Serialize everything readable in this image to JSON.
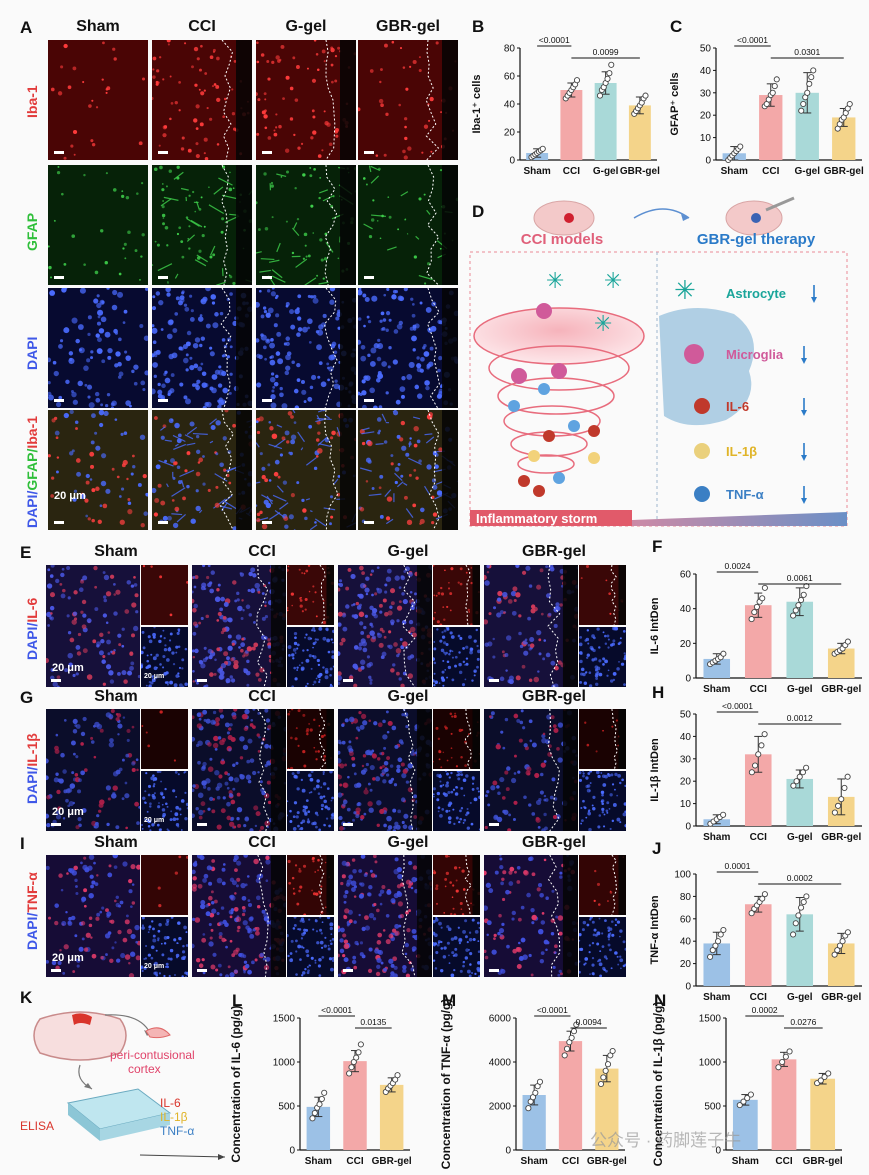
{
  "panelA": {
    "letter": "A",
    "columns": [
      "Sham",
      "CCI",
      "G-gel",
      "GBR-gel"
    ],
    "rows": [
      {
        "label": "Iba-1",
        "color": "#e23b3b"
      },
      {
        "label": "GFAP",
        "color": "#2fbf3a"
      },
      {
        "label": "DAPI",
        "color": "#3f58e8"
      }
    ],
    "merge_label": {
      "p1": "DAPI/",
      "p2": "GFAP/",
      "p3": "Iba-1"
    },
    "scale": "20 μm"
  },
  "panelD": {
    "letter": "D",
    "left_title": "CCI models",
    "right_title": "GBR-gel therapy",
    "items": [
      {
        "label": "Astrocyte",
        "color": "#1aa59a"
      },
      {
        "label": "Microglia",
        "color": "#d05a9a"
      },
      {
        "label": "IL-6",
        "color": "#c0392b"
      },
      {
        "label": "IL-1β",
        "color": "#e0b428"
      },
      {
        "label": "TNF-α",
        "color": "#3b7fc4"
      }
    ],
    "storm": "Inflammatory storm"
  },
  "rowE": {
    "letter": "E",
    "label_a": "DAPI/",
    "label_b": "IL-6"
  },
  "rowG": {
    "letter": "G",
    "label_a": "DAPI/",
    "label_b": "IL-1β"
  },
  "rowI": {
    "letter": "I",
    "label_a": "DAPI/",
    "label_b": "TNF-α"
  },
  "ifRows": {
    "columns": [
      "Sham",
      "CCI",
      "G-gel",
      "GBR-gel"
    ],
    "scale": "20 μm",
    "inset_scale": "20 μm"
  },
  "panelK": {
    "letter": "K",
    "region": "peri-contusional cortex",
    "method": "ELISA",
    "analytes": [
      {
        "label": "IL-6",
        "color": "#d9342b"
      },
      {
        "label": "IL-1β",
        "color": "#e0b428"
      },
      {
        "label": "TNF-α",
        "color": "#3b7fc4"
      }
    ]
  },
  "watermark": "公众号 · 药脚莲子牛",
  "chart_data": [
    {
      "panel": "B",
      "type": "bar",
      "categories": [
        "Sham",
        "CCI",
        "G-gel",
        "GBR-gel"
      ],
      "values": [
        5,
        50,
        55,
        39
      ],
      "errors": [
        3,
        5,
        8,
        6
      ],
      "points": [
        [
          2,
          3,
          4,
          5,
          6,
          7,
          8
        ],
        [
          44,
          46,
          48,
          50,
          52,
          54,
          57
        ],
        [
          46,
          50,
          52,
          55,
          58,
          62,
          68
        ],
        [
          33,
          35,
          37,
          39,
          41,
          44,
          46
        ]
      ],
      "ylabel": "Iba-1⁺ cells",
      "ylim": [
        0,
        80
      ],
      "yticks": [
        0,
        20,
        40,
        60,
        80
      ],
      "colors": [
        "#9cc1e6",
        "#f3a8a8",
        "#a9d9d8",
        "#f4d48a"
      ],
      "brackets": [
        {
          "from": 0,
          "to": 1,
          "label": "<0.0001"
        },
        {
          "from": 1,
          "to": 3,
          "label": "0.0099"
        }
      ]
    },
    {
      "panel": "C",
      "type": "bar",
      "categories": [
        "Sham",
        "CCI",
        "G-gel",
        "GBR-gel"
      ],
      "values": [
        3,
        29,
        30,
        19
      ],
      "errors": [
        3,
        5,
        9,
        4
      ],
      "points": [
        [
          0,
          1,
          2,
          3,
          4,
          5,
          6
        ],
        [
          24,
          25,
          27,
          29,
          30,
          33,
          36
        ],
        [
          22,
          25,
          28,
          30,
          34,
          37,
          40
        ],
        [
          14,
          16,
          18,
          19,
          21,
          23,
          25
        ]
      ],
      "ylabel": "GFAP⁺ cells",
      "ylim": [
        0,
        50
      ],
      "yticks": [
        0,
        10,
        20,
        30,
        40,
        50
      ],
      "colors": [
        "#9cc1e6",
        "#f3a8a8",
        "#a9d9d8",
        "#f4d48a"
      ],
      "brackets": [
        {
          "from": 0,
          "to": 1,
          "label": "<0.0001"
        },
        {
          "from": 1,
          "to": 3,
          "label": "0.0301"
        }
      ]
    },
    {
      "panel": "F",
      "type": "bar",
      "categories": [
        "Sham",
        "CCI",
        "G-gel",
        "GBR-gel"
      ],
      "values": [
        11,
        42,
        44,
        17
      ],
      "errors": [
        3,
        7,
        8,
        3
      ],
      "points": [
        [
          8,
          9,
          10,
          11,
          12,
          14
        ],
        [
          34,
          38,
          41,
          44,
          46,
          52
        ],
        [
          36,
          39,
          42,
          45,
          48,
          53
        ],
        [
          14,
          15,
          16,
          17,
          19,
          21
        ]
      ],
      "ylabel": "IL-6 IntDen",
      "ylim": [
        0,
        60
      ],
      "yticks": [
        0,
        20,
        40,
        60
      ],
      "colors": [
        "#9cc1e6",
        "#f3a8a8",
        "#a9d9d8",
        "#f4d48a"
      ],
      "brackets": [
        {
          "from": 0,
          "to": 1,
          "label": "0.0024"
        },
        {
          "from": 1,
          "to": 3,
          "label": "0.0061"
        }
      ]
    },
    {
      "panel": "H",
      "type": "bar",
      "categories": [
        "Sham",
        "CCI",
        "G-gel",
        "GBR-gel"
      ],
      "values": [
        3,
        32,
        21,
        13
      ],
      "errors": [
        2,
        8,
        4,
        8
      ],
      "points": [
        [
          1,
          2,
          3,
          4,
          5
        ],
        [
          24,
          27,
          32,
          36,
          41
        ],
        [
          18,
          20,
          22,
          24,
          26
        ],
        [
          6,
          9,
          12,
          17,
          22
        ]
      ],
      "ylabel": "IL-1β IntDen",
      "ylim": [
        0,
        50
      ],
      "yticks": [
        0,
        10,
        20,
        30,
        40,
        50
      ],
      "colors": [
        "#9cc1e6",
        "#f3a8a8",
        "#a9d9d8",
        "#f4d48a"
      ],
      "brackets": [
        {
          "from": 0,
          "to": 1,
          "label": "<0.0001"
        },
        {
          "from": 1,
          "to": 3,
          "label": "0.0012"
        }
      ]
    },
    {
      "panel": "J",
      "type": "bar",
      "categories": [
        "Sham",
        "CCI",
        "G-gel",
        "GBR-gel"
      ],
      "values": [
        38,
        73,
        64,
        38
      ],
      "errors": [
        10,
        7,
        15,
        9
      ],
      "points": [
        [
          26,
          32,
          36,
          40,
          46,
          50
        ],
        [
          65,
          69,
          72,
          75,
          78,
          82
        ],
        [
          46,
          56,
          63,
          70,
          75,
          80
        ],
        [
          28,
          32,
          36,
          40,
          45,
          48
        ]
      ],
      "ylabel": "TNF-α IntDen",
      "ylim": [
        0,
        100
      ],
      "yticks": [
        0,
        20,
        40,
        60,
        80,
        100
      ],
      "colors": [
        "#9cc1e6",
        "#f3a8a8",
        "#a9d9d8",
        "#f4d48a"
      ],
      "brackets": [
        {
          "from": 0,
          "to": 1,
          "label": "0.0001"
        },
        {
          "from": 1,
          "to": 3,
          "label": "0.0002"
        }
      ]
    },
    {
      "panel": "L",
      "type": "bar",
      "categories": [
        "Sham",
        "CCI",
        "GBR-gel"
      ],
      "values": [
        490,
        1010,
        740
      ],
      "errors": [
        110,
        120,
        80
      ],
      "points": [
        [
          360,
          420,
          480,
          520,
          580,
          650
        ],
        [
          870,
          940,
          1000,
          1050,
          1110,
          1200
        ],
        [
          660,
          700,
          730,
          760,
          800,
          850
        ]
      ],
      "ylabel": "Concentration of IL-6 (pg/g)",
      "ylim": [
        0,
        1500
      ],
      "yticks": [
        0,
        500,
        1000,
        1500
      ],
      "colors": [
        "#9cc1e6",
        "#f3a8a8",
        "#f4d48a"
      ],
      "brackets": [
        {
          "from": 0,
          "to": 1,
          "label": "<0.0001"
        },
        {
          "from": 1,
          "to": 2,
          "label": "0.0135"
        }
      ]
    },
    {
      "panel": "M",
      "type": "bar",
      "categories": [
        "Sham",
        "CCI",
        "GBR-gel"
      ],
      "values": [
        2500,
        4950,
        3700
      ],
      "errors": [
        450,
        450,
        600
      ],
      "points": [
        [
          1900,
          2200,
          2400,
          2600,
          2900,
          3100
        ],
        [
          4300,
          4600,
          4900,
          5100,
          5400,
          5700
        ],
        [
          3000,
          3300,
          3600,
          3900,
          4300,
          4500
        ]
      ],
      "ylabel": "Concentration of TNF-α (pg/g)",
      "ylim": [
        0,
        6000
      ],
      "yticks": [
        0,
        2000,
        4000,
        6000
      ],
      "colors": [
        "#9cc1e6",
        "#f3a8a8",
        "#f4d48a"
      ],
      "brackets": [
        {
          "from": 0,
          "to": 1,
          "label": "<0.0001"
        },
        {
          "from": 1,
          "to": 2,
          "label": "0.0094"
        }
      ]
    },
    {
      "panel": "N",
      "type": "bar",
      "categories": [
        "Sham",
        "CCI",
        "GBR-gel"
      ],
      "values": [
        570,
        1030,
        810
      ],
      "errors": [
        60,
        80,
        60
      ],
      "points": [
        [
          510,
          550,
          590,
          630
        ],
        [
          940,
          1000,
          1060,
          1120
        ],
        [
          760,
          790,
          830,
          870
        ]
      ],
      "ylabel": "Concentration of IL-1β (pg/g)",
      "ylim": [
        0,
        1500
      ],
      "yticks": [
        0,
        500,
        1000,
        1500
      ],
      "colors": [
        "#9cc1e6",
        "#f3a8a8",
        "#f4d48a"
      ],
      "brackets": [
        {
          "from": 0,
          "to": 1,
          "label": "0.0002"
        },
        {
          "from": 1,
          "to": 2,
          "label": "0.0276"
        }
      ]
    }
  ]
}
